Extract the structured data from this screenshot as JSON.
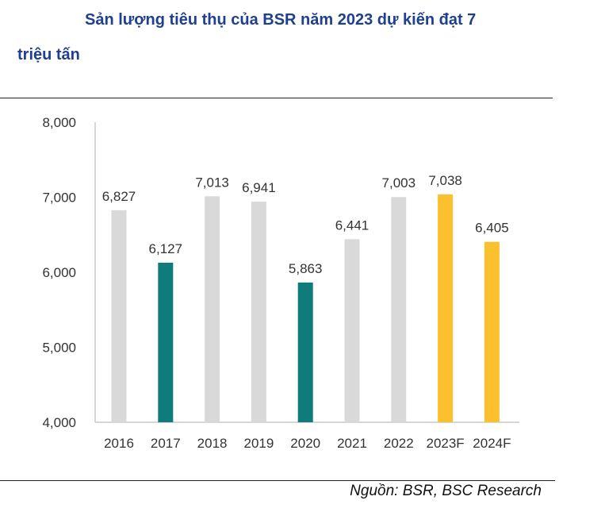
{
  "title": {
    "line1": "Sản lượng tiêu thụ của BSR năm 2023 dự kiến đạt 7",
    "line2": "triệu tấn"
  },
  "source": "Nguồn: BSR, BSC Research",
  "colors": {
    "historical": "#d9d9d9",
    "highlight": "#0f7b7b",
    "forecast": "#fbc02d",
    "axis": "#c8c8c8",
    "title": "#1f3f8f"
  },
  "chart_data": {
    "type": "bar",
    "title": "",
    "xlabel": "",
    "ylabel": "",
    "ylim": [
      4000,
      8000
    ],
    "yticks": [
      4000,
      5000,
      6000,
      7000,
      8000
    ],
    "ytick_labels": [
      "4,000",
      "5,000",
      "6,000",
      "7,000",
      "8,000"
    ],
    "grid": false,
    "categories": [
      "2016",
      "2017",
      "2018",
      "2019",
      "2020",
      "2021",
      "2022",
      "2023F",
      "2024F"
    ],
    "values": [
      6827,
      6127,
      7013,
      6941,
      5863,
      6441,
      7003,
      7038,
      6405
    ],
    "value_labels": [
      "6,827",
      "6,127",
      "7,013",
      "6,941",
      "5,863",
      "6,441",
      "7,003",
      "7,038",
      "6,405"
    ],
    "bar_colors": [
      "historical",
      "highlight",
      "historical",
      "historical",
      "highlight",
      "historical",
      "historical",
      "forecast",
      "forecast"
    ]
  }
}
